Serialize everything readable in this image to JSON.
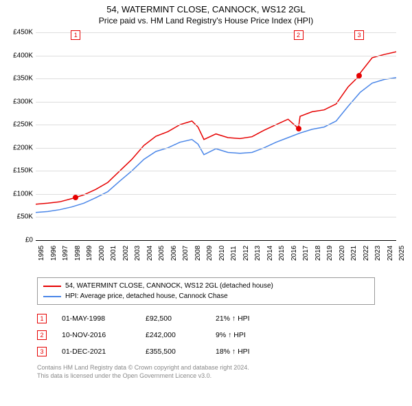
{
  "title": "54, WATERMINT CLOSE, CANNOCK, WS12 2GL",
  "subtitle": "Price paid vs. HM Land Registry's House Price Index (HPI)",
  "chart": {
    "type": "line",
    "background_color": "#ffffff",
    "grid_color": "#dddddd",
    "axis_color": "#000000",
    "label_fontsize": 10,
    "ylim": [
      0,
      450000
    ],
    "ytick_step": 50000,
    "yticks": [
      "£0",
      "£50K",
      "£100K",
      "£150K",
      "£200K",
      "£250K",
      "£300K",
      "£350K",
      "£400K",
      "£450K"
    ],
    "xlim": [
      1995,
      2025
    ],
    "xticks": [
      1995,
      1996,
      1997,
      1998,
      1999,
      2000,
      2001,
      2002,
      2003,
      2004,
      2005,
      2006,
      2007,
      2008,
      2009,
      2010,
      2011,
      2012,
      2013,
      2014,
      2015,
      2016,
      2017,
      2018,
      2019,
      2020,
      2021,
      2022,
      2023,
      2024,
      2025
    ],
    "series": [
      {
        "name": "54, WATERMINT CLOSE, CANNOCK, WS12 2GL (detached house)",
        "color": "#e60000",
        "line_width": 1.5,
        "data": [
          [
            1995,
            78000
          ],
          [
            1996,
            80000
          ],
          [
            1997,
            83000
          ],
          [
            1998,
            90000
          ],
          [
            1998.33,
            92500
          ],
          [
            1999,
            98000
          ],
          [
            2000,
            110000
          ],
          [
            2001,
            125000
          ],
          [
            2002,
            150000
          ],
          [
            2003,
            175000
          ],
          [
            2004,
            205000
          ],
          [
            2005,
            225000
          ],
          [
            2006,
            235000
          ],
          [
            2007,
            250000
          ],
          [
            2008,
            258000
          ],
          [
            2008.5,
            245000
          ],
          [
            2009,
            218000
          ],
          [
            2010,
            230000
          ],
          [
            2011,
            222000
          ],
          [
            2012,
            220000
          ],
          [
            2013,
            224000
          ],
          [
            2014,
            238000
          ],
          [
            2015,
            250000
          ],
          [
            2016,
            262000
          ],
          [
            2016.86,
            242000
          ],
          [
            2017,
            268000
          ],
          [
            2018,
            278000
          ],
          [
            2019,
            282000
          ],
          [
            2020,
            295000
          ],
          [
            2021,
            332000
          ],
          [
            2021.92,
            355500
          ],
          [
            2022,
            362000
          ],
          [
            2023,
            395000
          ],
          [
            2024,
            402000
          ],
          [
            2025,
            408000
          ]
        ]
      },
      {
        "name": "HPI: Average price, detached house, Cannock Chase",
        "color": "#4a86e8",
        "line_width": 1.5,
        "data": [
          [
            1995,
            60000
          ],
          [
            1996,
            62000
          ],
          [
            1997,
            66000
          ],
          [
            1998,
            72000
          ],
          [
            1999,
            80000
          ],
          [
            2000,
            92000
          ],
          [
            2001,
            105000
          ],
          [
            2002,
            128000
          ],
          [
            2003,
            150000
          ],
          [
            2004,
            175000
          ],
          [
            2005,
            192000
          ],
          [
            2006,
            200000
          ],
          [
            2007,
            212000
          ],
          [
            2008,
            218000
          ],
          [
            2008.5,
            208000
          ],
          [
            2009,
            185000
          ],
          [
            2010,
            198000
          ],
          [
            2011,
            190000
          ],
          [
            2012,
            188000
          ],
          [
            2013,
            190000
          ],
          [
            2014,
            200000
          ],
          [
            2015,
            212000
          ],
          [
            2016,
            222000
          ],
          [
            2017,
            232000
          ],
          [
            2018,
            240000
          ],
          [
            2019,
            245000
          ],
          [
            2020,
            258000
          ],
          [
            2021,
            290000
          ],
          [
            2022,
            320000
          ],
          [
            2023,
            340000
          ],
          [
            2024,
            348000
          ],
          [
            2025,
            352000
          ]
        ]
      }
    ],
    "markers": [
      {
        "n": "1",
        "x": 1998.33,
        "y": 92500
      },
      {
        "n": "2",
        "x": 2016.86,
        "y": 242000
      },
      {
        "n": "3",
        "x": 2021.92,
        "y": 355500
      }
    ]
  },
  "legend": {
    "border_color": "#999999",
    "items": [
      {
        "color": "#e60000",
        "label": "54, WATERMINT CLOSE, CANNOCK, WS12 2GL (detached house)"
      },
      {
        "color": "#4a86e8",
        "label": "HPI: Average price, detached house, Cannock Chase"
      }
    ]
  },
  "transactions": [
    {
      "n": "1",
      "date": "01-MAY-1998",
      "price": "£92,500",
      "delta": "21% ↑ HPI"
    },
    {
      "n": "2",
      "date": "10-NOV-2016",
      "price": "£242,000",
      "delta": "9% ↑ HPI"
    },
    {
      "n": "3",
      "date": "01-DEC-2021",
      "price": "£355,500",
      "delta": "18% ↑ HPI"
    }
  ],
  "footer_line1": "Contains HM Land Registry data © Crown copyright and database right 2024.",
  "footer_line2": "This data is licensed under the Open Government Licence v3.0."
}
